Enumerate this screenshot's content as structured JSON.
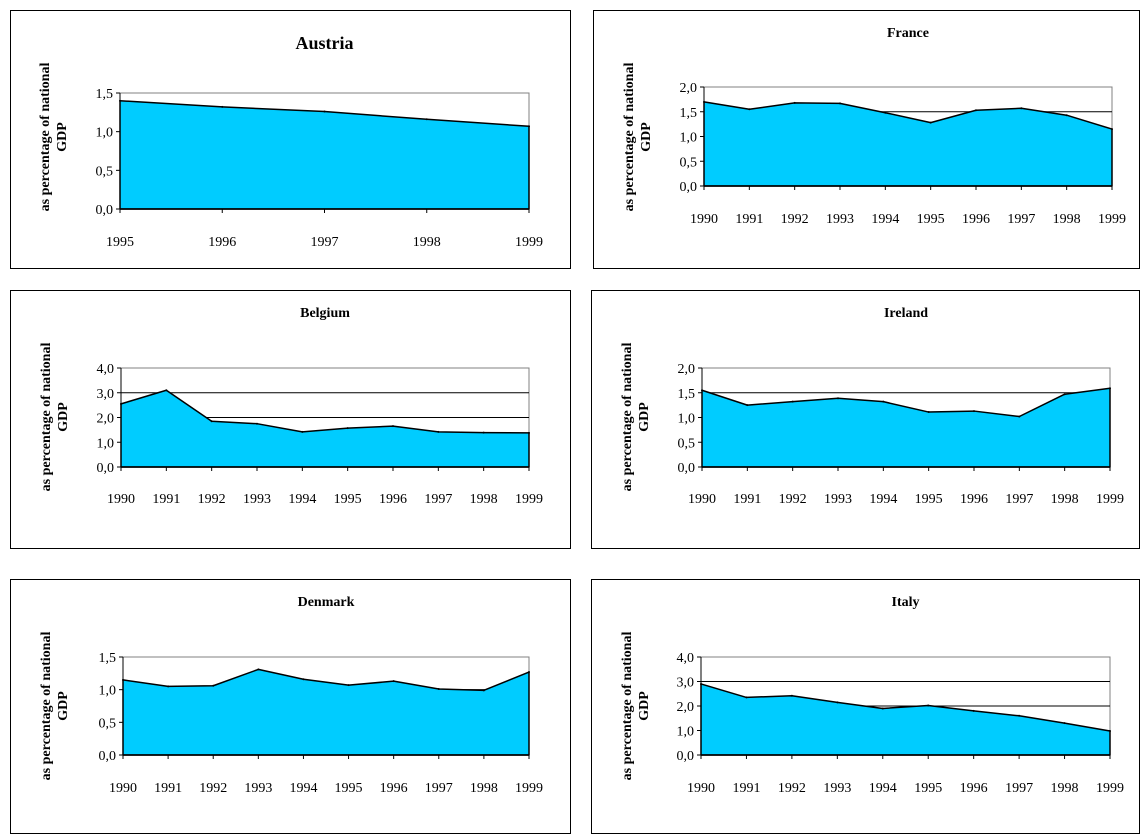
{
  "y_label_line1": "as percentage of national",
  "y_label_line2": "GDP",
  "colors": {
    "fill": "#00ccff",
    "line": "#000000",
    "grid": "#000000"
  },
  "chart_data": [
    {
      "type": "area",
      "title": "Austria",
      "x": [
        "1995",
        "1996",
        "1997",
        "1998",
        "1999"
      ],
      "values": [
        1.4,
        1.32,
        1.26,
        1.16,
        1.07
      ],
      "ylim": [
        0,
        1.5
      ],
      "yticks": [
        "0,0",
        "0,5",
        "1,0",
        "1,5"
      ],
      "ylabel": "as percentage of national GDP",
      "grid": true
    },
    {
      "type": "area",
      "title": "France",
      "x": [
        "1990",
        "1991",
        "1992",
        "1993",
        "1994",
        "1995",
        "1996",
        "1997",
        "1998",
        "1999"
      ],
      "values": [
        1.7,
        1.55,
        1.68,
        1.67,
        1.48,
        1.28,
        1.53,
        1.57,
        1.43,
        1.15
      ],
      "ylim": [
        0,
        2.0
      ],
      "yticks": [
        "0,0",
        "0,5",
        "1,0",
        "1,5",
        "2,0"
      ],
      "ylabel": "as percentage of national GDP",
      "grid": true
    },
    {
      "type": "area",
      "title": "Belgium",
      "x": [
        "1990",
        "1991",
        "1992",
        "1993",
        "1994",
        "1995",
        "1996",
        "1997",
        "1998",
        "1999"
      ],
      "values": [
        2.55,
        3.1,
        1.85,
        1.75,
        1.42,
        1.57,
        1.65,
        1.42,
        1.39,
        1.38
      ],
      "ylim": [
        0,
        4.0
      ],
      "yticks": [
        "0,0",
        "1,0",
        "2,0",
        "3,0",
        "4,0"
      ],
      "ylabel": "as percentage of national GDP",
      "grid": true
    },
    {
      "type": "area",
      "title": "Ireland",
      "x": [
        "1990",
        "1991",
        "1992",
        "1993",
        "1994",
        "1995",
        "1996",
        "1997",
        "1998",
        "1999"
      ],
      "values": [
        1.55,
        1.25,
        1.32,
        1.39,
        1.32,
        1.11,
        1.13,
        1.02,
        1.47,
        1.59
      ],
      "ylim": [
        0,
        2.0
      ],
      "yticks": [
        "0,0",
        "0,5",
        "1,0",
        "1,5",
        "2,0"
      ],
      "ylabel": "as percentage of national GDP",
      "grid": true
    },
    {
      "type": "area",
      "title": "Denmark",
      "x": [
        "1990",
        "1991",
        "1992",
        "1993",
        "1994",
        "1995",
        "1996",
        "1997",
        "1998",
        "1999"
      ],
      "values": [
        1.15,
        1.05,
        1.06,
        1.31,
        1.16,
        1.07,
        1.13,
        1.01,
        0.99,
        1.27
      ],
      "ylim": [
        0,
        1.5
      ],
      "yticks": [
        "0,0",
        "0,5",
        "1,0",
        "1,5"
      ],
      "ylabel": "as percentage of national GDP",
      "grid": true
    },
    {
      "type": "area",
      "title": "Italy",
      "x": [
        "1990",
        "1991",
        "1992",
        "1993",
        "1994",
        "1995",
        "1996",
        "1997",
        "1998",
        "1999"
      ],
      "values": [
        2.9,
        2.35,
        2.42,
        2.15,
        1.9,
        2.02,
        1.8,
        1.6,
        1.3,
        0.98
      ],
      "ylim": [
        0,
        4.0
      ],
      "yticks": [
        "0,0",
        "1,0",
        "2,0",
        "3,0",
        "4,0"
      ],
      "ylabel": "as percentage of national GDP",
      "grid": true
    }
  ]
}
